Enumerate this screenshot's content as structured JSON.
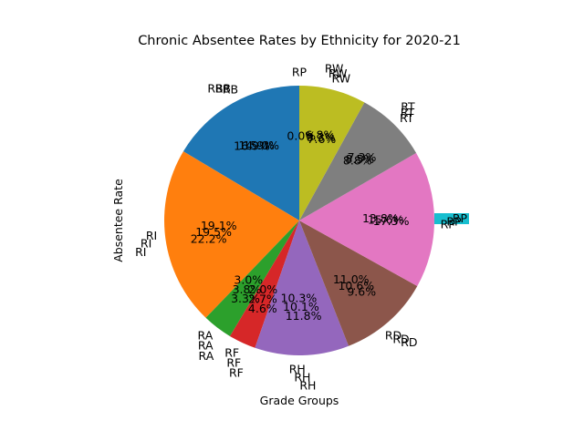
{
  "chart_data": {
    "type": "pie",
    "title": "Chronic Absentee Rates by Ethnicity for 2020-21",
    "xlabel": "Grade Groups",
    "ylabel": "Absentee Rate",
    "start_angle_deg": 90,
    "direction": "counterclockwise",
    "legend": "none",
    "outline": "none",
    "slices": [
      {
        "label": "RB",
        "color": "#1f77b4",
        "repeats": 3,
        "pct_labels": [
          "15.0%",
          "14.9%",
          "16.9%"
        ],
        "value": 15.6
      },
      {
        "label": "RI",
        "color": "#ff7f0e",
        "repeats": 3,
        "pct_labels": [
          "19.1%",
          "19.5%",
          "22.2%"
        ],
        "value": 20.3
      },
      {
        "label": "RA",
        "color": "#2ca02c",
        "repeats": 3,
        "pct_labels": [
          "3.0%",
          "3.8%",
          "3.3%"
        ],
        "value": 3.4
      },
      {
        "label": "RF",
        "color": "#d62728",
        "repeats": 3,
        "pct_labels": [
          "2.0%",
          "2.7%",
          "4.6%"
        ],
        "value": 3.1
      },
      {
        "label": "RH",
        "color": "#9467bd",
        "repeats": 3,
        "pct_labels": [
          "10.3%",
          "10.1%",
          "11.8%"
        ],
        "value": 10.7
      },
      {
        "label": "RD",
        "color": "#8c564b",
        "repeats": 3,
        "pct_labels": [
          "11.0%",
          "10.6%",
          "9.6%"
        ],
        "value": 10.4
      },
      {
        "label": "RP",
        "color": "#e377c2",
        "repeats": 3,
        "pct_labels": [
          "13.8%",
          "15.6%",
          "17.3%"
        ],
        "value": 15.6
      },
      {
        "label": "RT",
        "color": "#7f7f7f",
        "repeats": 3,
        "pct_labels": [
          "8.8%",
          "8.5%",
          "7.3%"
        ],
        "value": 8.2
      },
      {
        "label": "RW",
        "color": "#bcbd22",
        "repeats": 3,
        "pct_labels": [
          "7.6%",
          "8.3%",
          "6.8%"
        ],
        "value": 7.6
      },
      {
        "label": "RP",
        "color": "#17becf",
        "repeats": 1,
        "pct_labels": [
          "0.0%"
        ],
        "value": 0.0
      }
    ]
  }
}
